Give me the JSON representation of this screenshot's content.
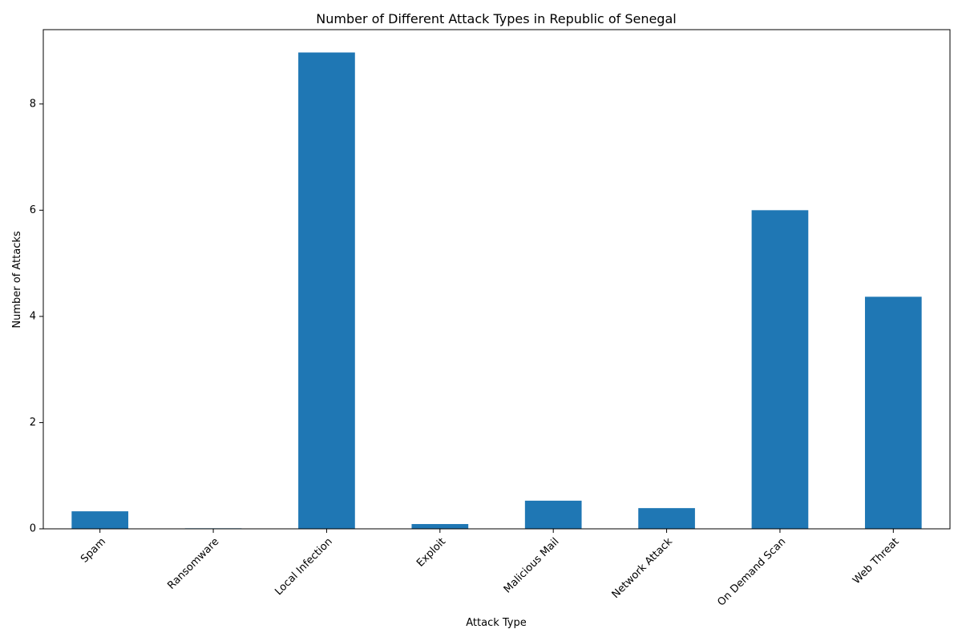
{
  "chart_data": {
    "type": "bar",
    "title": "Number of Different Attack Types in Republic of Senegal",
    "xlabel": "Attack Type",
    "ylabel": "Number of Attacks",
    "categories": [
      "Spam",
      "Ransomware",
      "Local Infection",
      "Exploit",
      "Malicious Mail",
      "Network Attack",
      "On Demand Scan",
      "Web Threat"
    ],
    "values": [
      0.33,
      0.01,
      8.97,
      0.09,
      0.53,
      0.39,
      6.0,
      4.37
    ],
    "ylim": [
      0,
      9.4
    ],
    "yticks": [
      0,
      2,
      4,
      6,
      8
    ],
    "grid": false,
    "legend": "none",
    "bar_color": "#1f77b4"
  }
}
